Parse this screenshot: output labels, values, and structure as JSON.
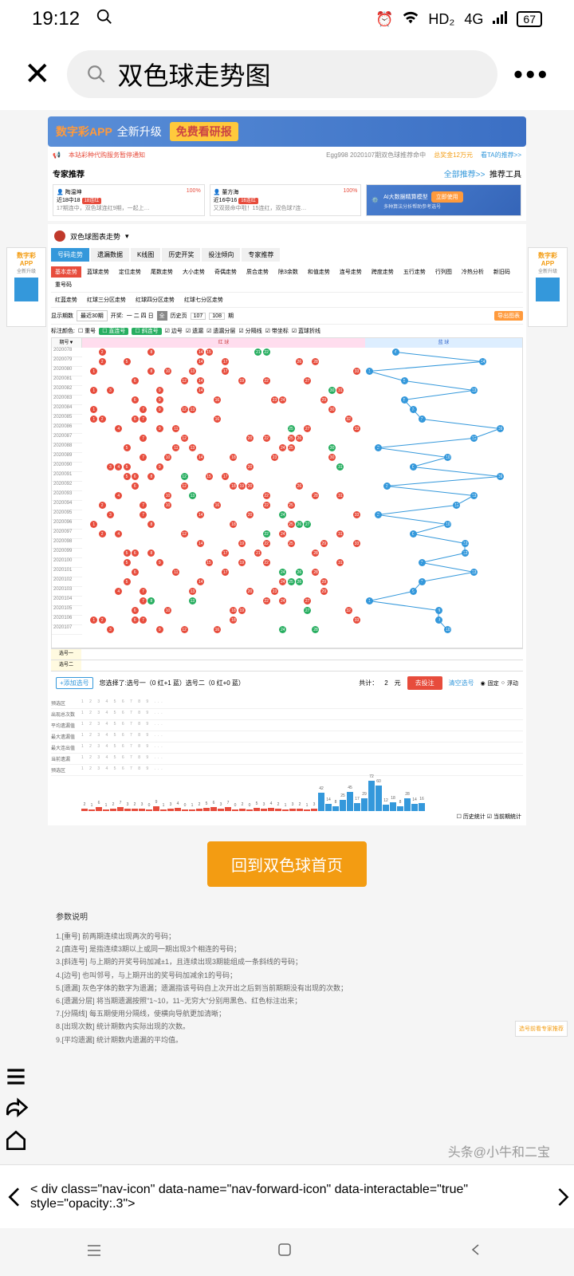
{
  "status": {
    "time": "19:12",
    "hd": "HD₂",
    "net": "4G",
    "battery": "67"
  },
  "search": {
    "query": "双色球走势图"
  },
  "banner": {
    "brand": "数字彩APP",
    "tag": "全新升级",
    "highlight": "免费看研报"
  },
  "notice": {
    "left": "本站彩种代购服务暂停通知",
    "mid": "Egg998 2020107期双色球推荐命中",
    "prize": "总奖金12万元",
    "link": "看TA的推荐>>"
  },
  "rec": {
    "title": "专家推荐",
    "all": "全部推荐>>",
    "tools": "推荐工具",
    "cards": [
      {
        "name": "陶温坤",
        "pct": "100%",
        "stat": "近18中18",
        "tag": "18连红",
        "desc": "17期连中，双色球连红9期，一起上…"
      },
      {
        "name": "董方海",
        "pct": "100%",
        "stat": "近16中16",
        "tag": "16连红",
        "desc": "又双叕命中啦！15连红，双色球7连…"
      }
    ],
    "ai": {
      "title": "AI大数据精算模型",
      "btn": "立即使用",
      "sub": "多种算法分析帮助参考选号"
    }
  },
  "chart": {
    "dropdown": "双色球图表走势",
    "tabs": [
      "号码走势",
      "遗漏数据",
      "K线图",
      "历史开奖",
      "投注倾向",
      "专家推荐"
    ],
    "active_tab": 0,
    "subtabs": [
      "基本走势",
      "蓝球走势",
      "定位走势",
      "尾数走势",
      "大小走势",
      "奇偶走势",
      "质合走势",
      "除3余数",
      "和值走势",
      "连号走势",
      "跨度走势",
      "五行走势",
      "行列图",
      "冷热分析",
      "新旧码",
      "重号码"
    ],
    "subtabs2": [
      "红蓝走势",
      "红球三分区走势",
      "红球四分区走势",
      "红球七分区走势"
    ],
    "period_label": "显示期数",
    "period_val": "最近30期",
    "open_label": "开奖:",
    "hist_label": "历史页",
    "hist_from": "107",
    "hist_to": "108",
    "hist_unit": "期",
    "export": "导出图表",
    "marker_label": "标注颜色:",
    "markers": [
      "重号",
      "直连号",
      "斜连号",
      "边号",
      "遗漏",
      "遗漏分层",
      "分隔线",
      "带坐标",
      "蓝球折线"
    ],
    "header_red": "红 球",
    "header_blue": "蓝 球",
    "periods": [
      "2020078",
      "2020079",
      "2020080",
      "2020081",
      "2020082",
      "2020083",
      "2020084",
      "2020085",
      "2020086",
      "2020087",
      "2020088",
      "2020089",
      "2020090",
      "2020091",
      "2020092",
      "2020093",
      "2020094",
      "2020095",
      "2020096",
      "2020097",
      "2020098",
      "2020099",
      "2020100",
      "2020101",
      "2020102",
      "2020103",
      "2020104",
      "2020105",
      "2020106",
      "2020107"
    ],
    "sel_labels": [
      "选号一",
      "选号二"
    ],
    "balls": [
      {
        "r": 0,
        "nums": [
          2,
          8,
          14,
          15,
          21,
          22
        ],
        "green": [
          21,
          22
        ],
        "blue": 4
      },
      {
        "r": 1,
        "nums": [
          2,
          5,
          14,
          17,
          26,
          28
        ],
        "green": [],
        "blue": 14
      },
      {
        "r": 2,
        "nums": [
          1,
          8,
          10,
          13,
          17,
          33
        ],
        "green": [],
        "blue": 1
      },
      {
        "r": 3,
        "nums": [
          6,
          12,
          14,
          19,
          22,
          27
        ],
        "green": [],
        "blue": 5
      },
      {
        "r": 4,
        "nums": [
          1,
          3,
          9,
          14,
          30,
          31
        ],
        "green": [
          30
        ],
        "blue": 13
      },
      {
        "r": 5,
        "nums": [
          6,
          9,
          16,
          23,
          24,
          29
        ],
        "green": [],
        "blue5": 5
      },
      {
        "r": 6,
        "nums": [
          1,
          7,
          9,
          12,
          13,
          30
        ],
        "green": [],
        "blue": 6
      },
      {
        "r": 7,
        "nums": [
          1,
          2,
          6,
          7,
          16,
          32
        ],
        "green": [],
        "blue": 7
      },
      {
        "r": 8,
        "nums": [
          4,
          9,
          11,
          25,
          27,
          33
        ],
        "green": [
          25
        ],
        "blue": 16
      },
      {
        "r": 9,
        "nums": [
          7,
          12,
          20,
          22,
          25,
          26
        ],
        "green": [],
        "blue": 13
      },
      {
        "r": 10,
        "nums": [
          5,
          11,
          13,
          24,
          25,
          30
        ],
        "green": [
          30
        ],
        "blue": 2
      },
      {
        "r": 11,
        "nums": [
          7,
          10,
          14,
          18,
          23,
          30
        ],
        "green": [],
        "blue": 10
      },
      {
        "r": 12,
        "nums": [
          3,
          4,
          5,
          9,
          20,
          31
        ],
        "green": [
          31
        ],
        "blue": 6
      },
      {
        "r": 13,
        "nums": [
          5,
          6,
          8,
          12,
          15,
          17
        ],
        "green": [
          12
        ],
        "blue": 16
      },
      {
        "r": 14,
        "nums": [
          6,
          12,
          18,
          19,
          20,
          26
        ],
        "green": [],
        "blue": 3
      },
      {
        "r": 15,
        "nums": [
          4,
          10,
          13,
          22,
          28,
          31
        ],
        "green": [
          13
        ],
        "blue": 13
      },
      {
        "r": 16,
        "nums": [
          2,
          7,
          10,
          16,
          22,
          25
        ],
        "green": [],
        "blue": 11
      },
      {
        "r": 17,
        "nums": [
          3,
          7,
          14,
          20,
          24,
          33
        ],
        "green": [
          24
        ],
        "blue": 2
      },
      {
        "r": 18,
        "nums": [
          1,
          8,
          18,
          25,
          26,
          27
        ],
        "green": [
          26,
          27
        ],
        "blue": 10
      },
      {
        "r": 19,
        "nums": [
          2,
          4,
          12,
          22,
          24,
          31
        ],
        "green": [
          22
        ],
        "blue": 6
      },
      {
        "r": 20,
        "nums": [
          14,
          19,
          22,
          25,
          29,
          33
        ],
        "green": [],
        "blue": 12
      },
      {
        "r": 21,
        "nums": [
          5,
          6,
          8,
          17,
          21,
          28
        ],
        "green": [],
        "blue": 12
      },
      {
        "r": 22,
        "nums": [
          5,
          9,
          15,
          19,
          22,
          31
        ],
        "green": [],
        "blue": 7
      },
      {
        "r": 23,
        "nums": [
          6,
          11,
          17,
          24,
          26,
          28
        ],
        "green": [
          24,
          26
        ],
        "blue": 13
      },
      {
        "r": 24,
        "nums": [
          5,
          14,
          24,
          25,
          26,
          29
        ],
        "green": [
          25,
          26
        ],
        "blue": 7
      },
      {
        "r": 25,
        "nums": [
          4,
          7,
          13,
          20,
          23,
          29
        ],
        "green": [],
        "blue": 6
      },
      {
        "r": 26,
        "nums": [
          7,
          8,
          13,
          22,
          24,
          27
        ],
        "green": [
          8,
          13
        ],
        "blue": 1
      },
      {
        "r": 27,
        "nums": [
          6,
          10,
          18,
          19,
          27,
          32
        ],
        "green": [
          27
        ],
        "blue": 9
      },
      {
        "r": 28,
        "nums": [
          1,
          2,
          6,
          7,
          18,
          33
        ],
        "green": [],
        "blue": 9
      },
      {
        "r": 29,
        "nums": [
          3,
          9,
          12,
          16,
          24,
          28
        ],
        "green": [
          24,
          28
        ],
        "blue": 10
      }
    ]
  },
  "bet": {
    "add": "+添加选号",
    "info": "您选择了:选号一（0 红+1 蓝）选号二（0 红+0 蓝）",
    "total_label": "共计：",
    "total": "2",
    "unit": "元",
    "submit": "去投注",
    "clear": "清空选号",
    "fixed": "固定",
    "float": "浮动"
  },
  "stats": {
    "labels": [
      "预选区",
      "出现总次数",
      "平均遗漏值",
      "最大遗漏值",
      "最大连出值",
      "当前遗漏",
      "预选区"
    ],
    "bars": [
      2,
      1,
      6,
      1,
      2,
      7,
      3,
      2,
      3,
      0,
      9,
      1,
      3,
      4,
      0,
      1,
      2,
      5,
      6,
      3,
      7,
      0,
      2,
      0,
      5,
      3,
      4,
      2,
      1,
      3,
      2,
      1,
      3,
      42,
      14,
      8,
      25,
      45,
      17,
      29,
      72,
      60,
      12,
      18,
      8,
      28,
      14,
      16
    ],
    "legend": [
      "历史统计",
      "当前期统计"
    ]
  },
  "back_btn": "回到双色球首页",
  "params": {
    "title": "参数说明",
    "items": [
      "1.[重号] 前两期连续出现两次的号码；",
      "2.[直连号] 是指连续3期以上或同一期出现3个相连的号码；",
      "3.[斜连号] 与上期的开奖号码加减±1，且连续出现3期能组成一条斜线的号码；",
      "4.[边号] 也叫邻号，与上期开出的奖号码加减余1的号码；",
      "5.[遗漏] 灰色字体的数字为遗漏；遗漏指该号码自上次开出之后到当前期期没有出现的次数；",
      "6.[遗漏分层] 将当期遗漏按照\"1~10，11~无穷大\"分别用黑色、红色标注出来；",
      "7.[分隔线] 每五期使用分隔线，使横向导航更加清晰；",
      "8.[出现次数] 统计期数内实际出现的次数。",
      "9.[平均遗漏] 统计期数内遗漏的平均值。"
    ]
  },
  "side_ad": {
    "line1": "数字彩",
    "line2": "APP",
    "line3": "全新升级"
  },
  "float": "选号前看专家推荐",
  "watermark": "头条@小牛和二宝"
}
